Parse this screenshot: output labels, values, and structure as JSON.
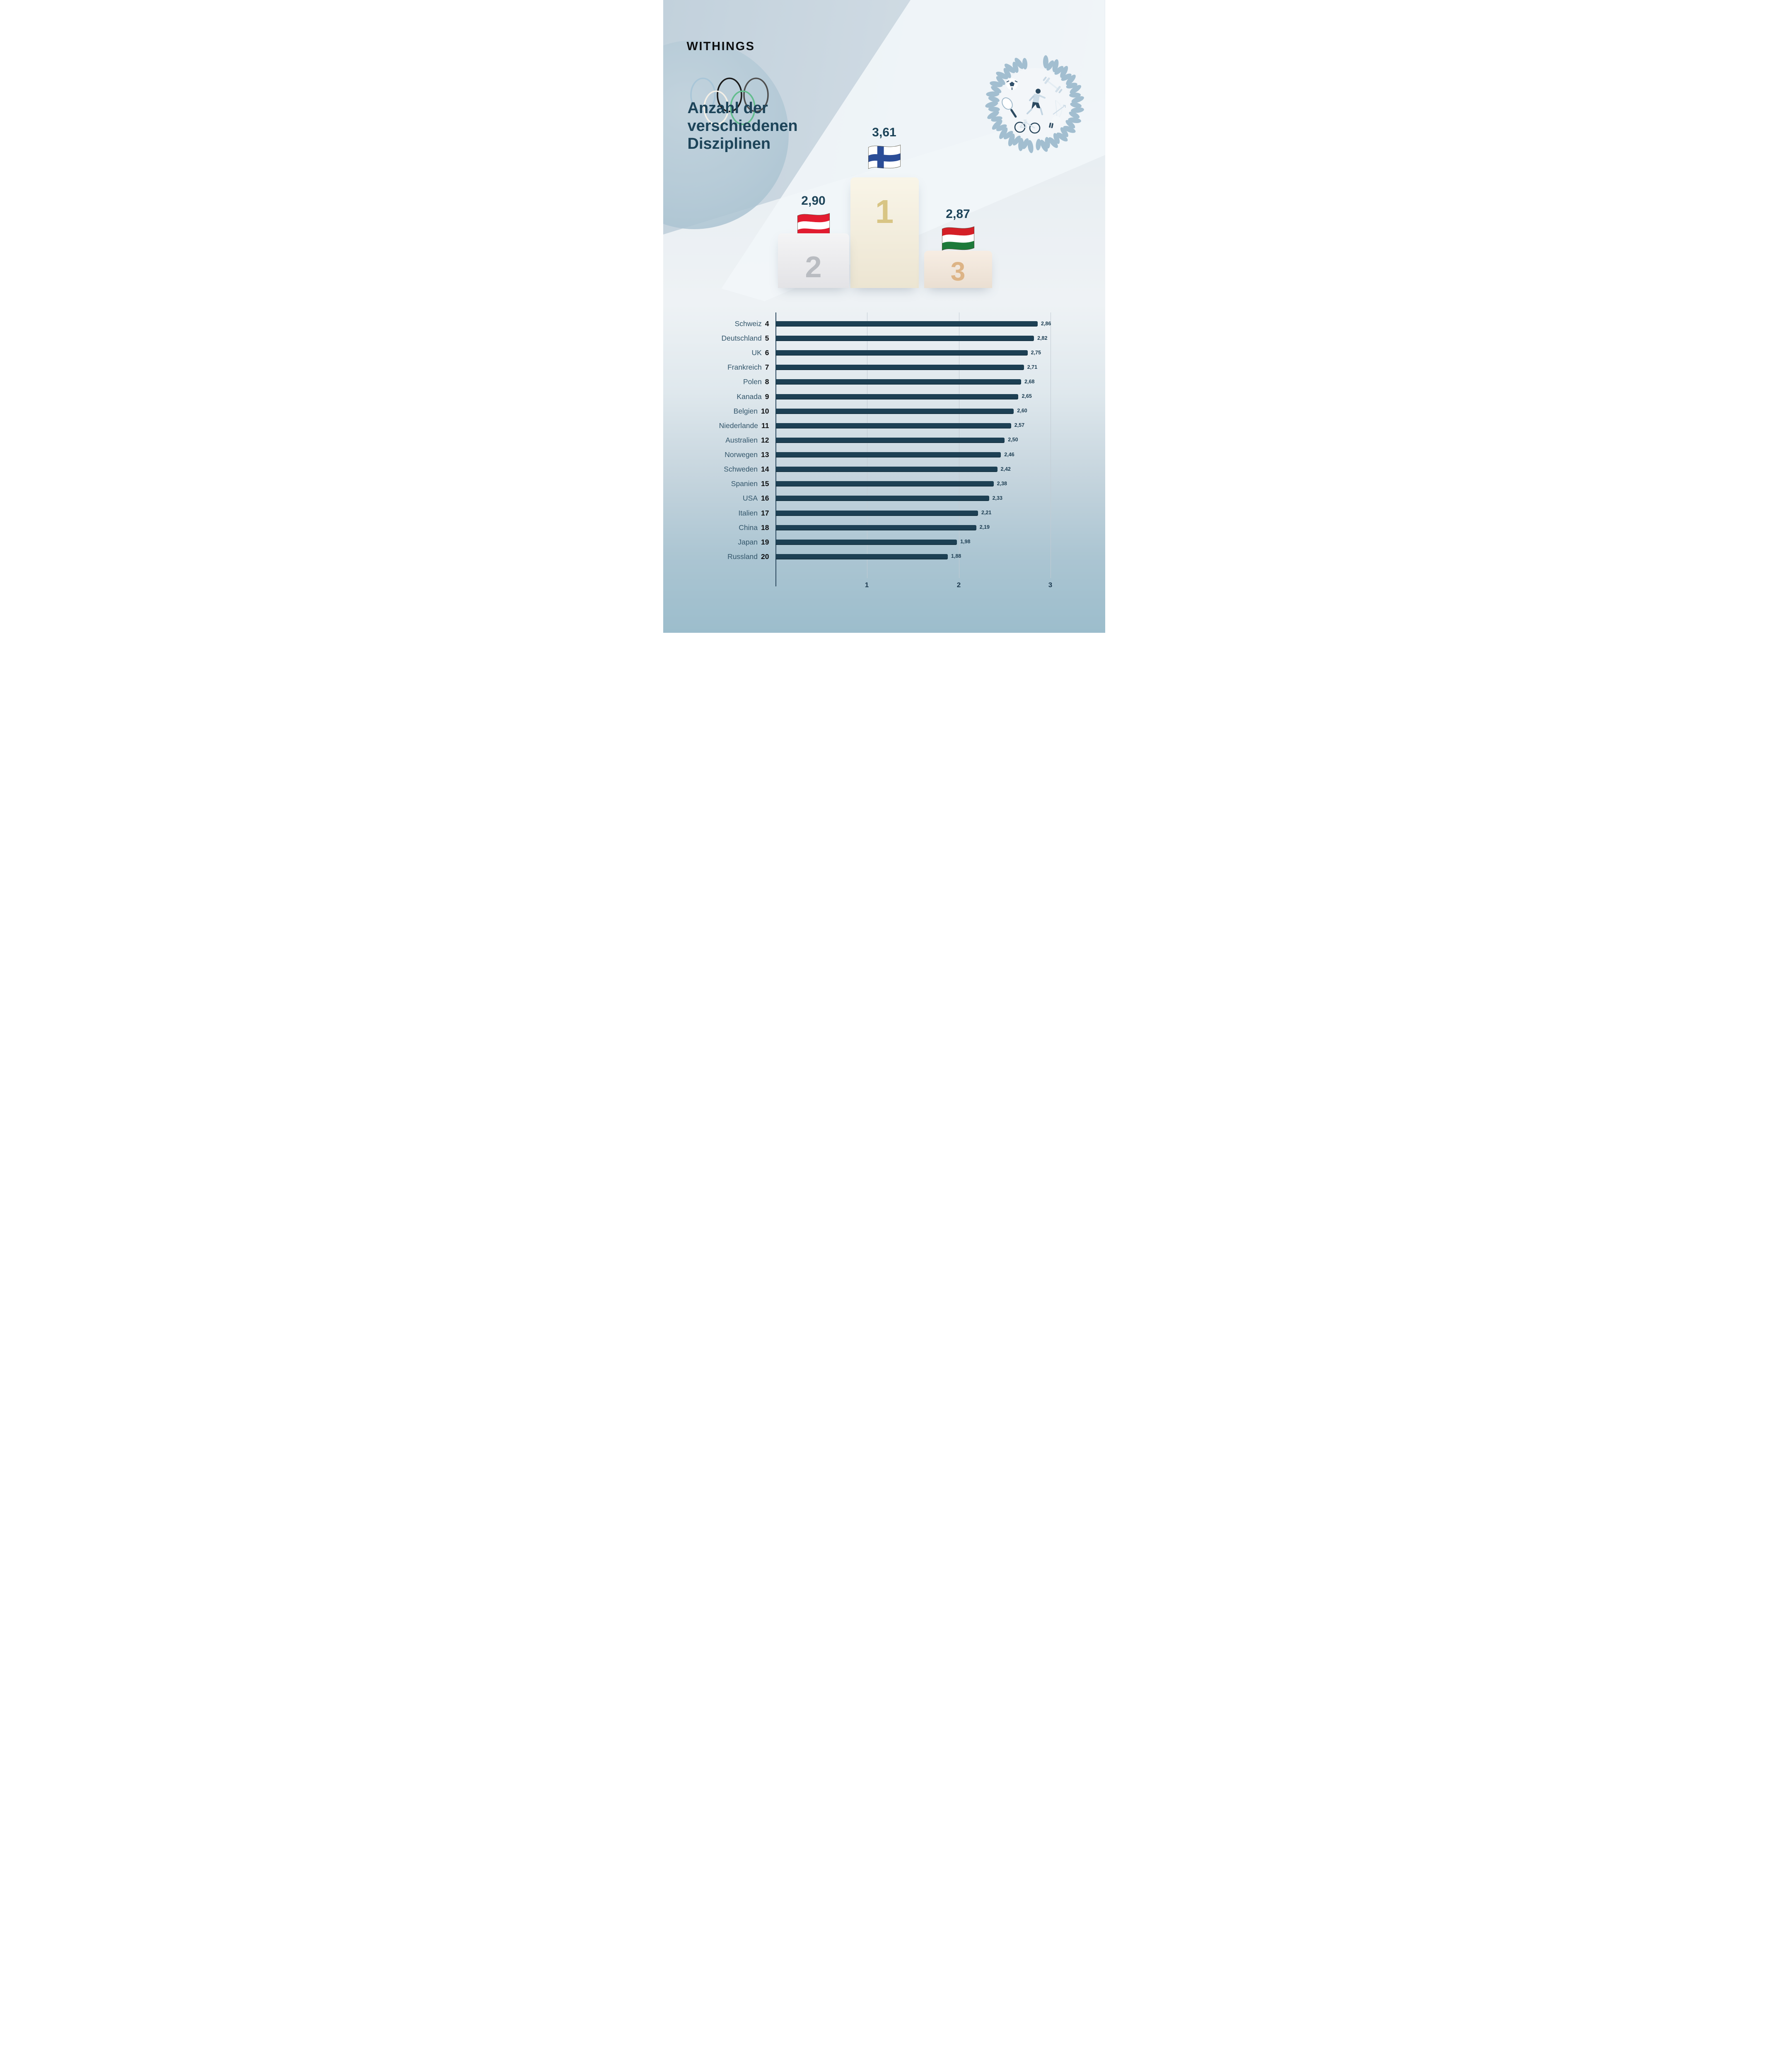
{
  "brand": {
    "logo": "WITHINGS",
    "olympic_ring_colors": [
      "#a9c6d8",
      "#1b1b1b",
      "#4f4f4f",
      "#f4f0e7",
      "#63bd8e"
    ]
  },
  "title": {
    "line1": "Anzahl der",
    "line2": "verschiedenen",
    "line3": "Disziplinen",
    "full": "Anzahl der verschiedenen Disziplinen"
  },
  "emblem": {
    "icons": [
      "soccer-ball",
      "dumbbell",
      "tennis-racket",
      "runner",
      "bow-and-arrow",
      "bicycle",
      "boxing-glove"
    ],
    "wreath_color": "#a2bed0"
  },
  "colors": {
    "bar": "#1d4054",
    "text_navy": "#1d4459",
    "country_label": "#33566b",
    "gold": "#d8c584",
    "silver": "#b9bcc1",
    "bronze": "#ddb486",
    "background_bottom": "#9cbdcc"
  },
  "chart_data": {
    "type": "bar",
    "orientation": "horizontal",
    "title": "Anzahl der verschiedenen Disziplinen",
    "x_axis": {
      "range": [
        0,
        3
      ],
      "ticks": [
        "1",
        "2",
        "3"
      ],
      "gridlines": true
    },
    "podium": [
      {
        "rank": "1",
        "flag": "finland-flag",
        "value": 3.61,
        "value_label": "3,61"
      },
      {
        "rank": "2",
        "flag": "austria-flag",
        "value": 2.9,
        "value_label": "2,90"
      },
      {
        "rank": "3",
        "flag": "hungary-flag",
        "value": 2.87,
        "value_label": "2,87"
      }
    ],
    "rows": [
      {
        "rank": "4",
        "country": "Schweiz",
        "value": 2.86,
        "value_label": "2,86"
      },
      {
        "rank": "5",
        "country": "Deutschland",
        "value": 2.82,
        "value_label": "2,82"
      },
      {
        "rank": "6",
        "country": "UK",
        "value": 2.75,
        "value_label": "2,75"
      },
      {
        "rank": "7",
        "country": "Frankreich",
        "value": 2.71,
        "value_label": "2,71"
      },
      {
        "rank": "8",
        "country": "Polen",
        "value": 2.68,
        "value_label": "2,68"
      },
      {
        "rank": "9",
        "country": "Kanada",
        "value": 2.65,
        "value_label": "2,65"
      },
      {
        "rank": "10",
        "country": "Belgien",
        "value": 2.6,
        "value_label": "2,60"
      },
      {
        "rank": "11",
        "country": "Niederlande",
        "value": 2.57,
        "value_label": "2,57"
      },
      {
        "rank": "12",
        "country": "Australien",
        "value": 2.5,
        "value_label": "2,50"
      },
      {
        "rank": "13",
        "country": "Norwegen",
        "value": 2.46,
        "value_label": "2,46"
      },
      {
        "rank": "14",
        "country": "Schweden",
        "value": 2.42,
        "value_label": "2,42"
      },
      {
        "rank": "15",
        "country": "Spanien",
        "value": 2.38,
        "value_label": "2,38"
      },
      {
        "rank": "16",
        "country": "USA",
        "value": 2.33,
        "value_label": "2,33"
      },
      {
        "rank": "17",
        "country": "Italien",
        "value": 2.21,
        "value_label": "2,21"
      },
      {
        "rank": "18",
        "country": "China",
        "value": 2.19,
        "value_label": "2,19"
      },
      {
        "rank": "19",
        "country": "Japan",
        "value": 1.98,
        "value_label": "1,98"
      },
      {
        "rank": "20",
        "country": "Russland",
        "value": 1.88,
        "value_label": "1,88"
      }
    ]
  }
}
